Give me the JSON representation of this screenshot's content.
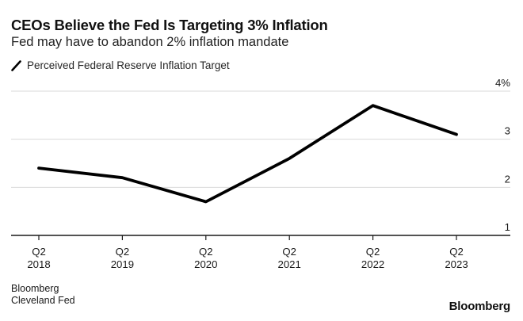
{
  "header": {
    "title": "CEOs Believe the Fed Is Targeting 3% Inflation",
    "subtitle": "Fed may have to abandon 2% inflation mandate"
  },
  "legend": {
    "label": "Perceived Federal Reserve Inflation Target",
    "marker_color": "#000000"
  },
  "chart_data": {
    "type": "line",
    "title": "CEOs Believe the Fed Is Targeting 3% Inflation",
    "subtitle": "Fed may have to abandon 2% inflation mandate",
    "categories": [
      {
        "quarter": "Q2",
        "year": "2018"
      },
      {
        "quarter": "Q2",
        "year": "2019"
      },
      {
        "quarter": "Q2",
        "year": "2020"
      },
      {
        "quarter": "Q2",
        "year": "2021"
      },
      {
        "quarter": "Q2",
        "year": "2022"
      },
      {
        "quarter": "Q2",
        "year": "2023"
      }
    ],
    "series": [
      {
        "name": "Perceived Federal Reserve Inflation Target",
        "values": [
          2.4,
          2.2,
          1.7,
          2.6,
          3.7,
          3.1
        ],
        "color": "#000000"
      }
    ],
    "y_axis": {
      "ticks": [
        1,
        2,
        3,
        4
      ],
      "tick_labels": [
        "1",
        "2",
        "3",
        "4%"
      ],
      "range": [
        1,
        4
      ],
      "side": "right"
    },
    "grid": "horizontal",
    "gridline_color": "#d9d9d9",
    "axis_color": "#1a1a1a",
    "label_color": "#1a1a1a",
    "legend_position": "top-left"
  },
  "footer": {
    "source_line1": "Bloomberg",
    "source_line2": "Cleveland Fed",
    "logo": "Bloomberg"
  }
}
